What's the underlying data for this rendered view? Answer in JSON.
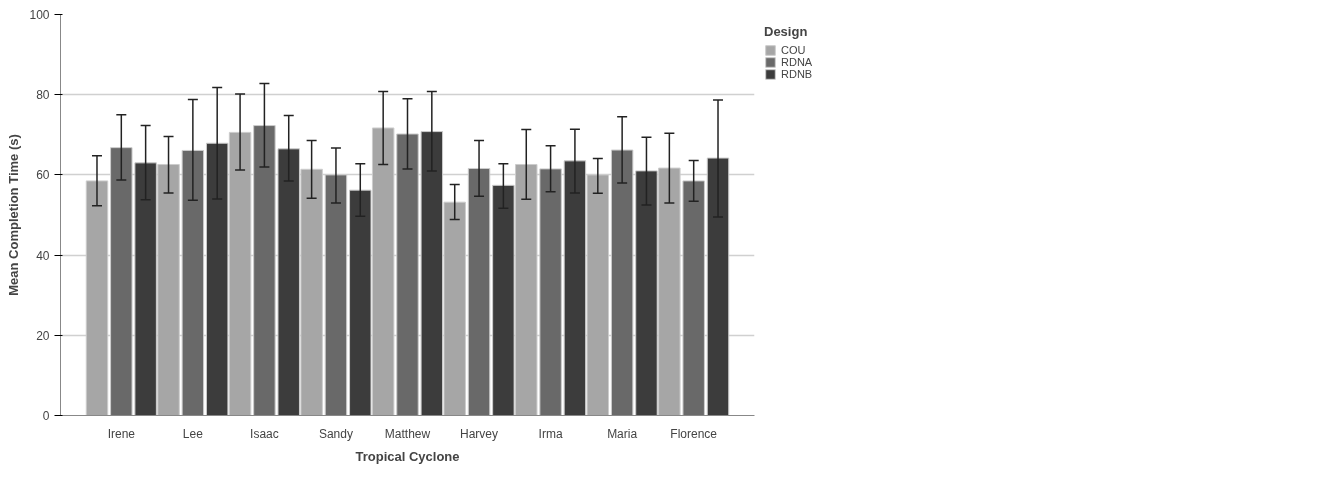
{
  "chart_data": {
    "type": "bar",
    "xlabel": "Tropical Cyclone",
    "ylabel": "Mean Completion Time (s)",
    "legend_title": "Design",
    "categories": [
      "Irene",
      "Lee",
      "Isaac",
      "Sandy",
      "Matthew",
      "Harvey",
      "Irma",
      "Maria",
      "Florence"
    ],
    "series": [
      {
        "name": "COU",
        "color": "#a6a6a6",
        "values": [
          58.5,
          62.6,
          70.6,
          61.4,
          71.7,
          53.2,
          62.6,
          60.0,
          61.7
        ],
        "errors": [
          [
            52.3,
            64.8
          ],
          [
            55.5,
            69.6
          ],
          [
            61.2,
            80.2
          ],
          [
            54.2,
            68.6
          ],
          [
            62.6,
            80.8
          ],
          [
            48.9,
            57.6
          ],
          [
            53.9,
            71.3
          ],
          [
            55.4,
            64.1
          ],
          [
            53.0,
            70.4
          ]
        ]
      },
      {
        "name": "RDNA",
        "color": "#696969",
        "values": [
          66.8,
          66.1,
          72.3,
          60.0,
          70.2,
          61.6,
          61.5,
          66.2,
          58.5
        ],
        "errors": [
          [
            58.7,
            75.0
          ],
          [
            53.7,
            78.8
          ],
          [
            62.0,
            82.8
          ],
          [
            53.0,
            66.7
          ],
          [
            61.5,
            79.0
          ],
          [
            54.7,
            68.6
          ],
          [
            55.8,
            67.3
          ],
          [
            58.0,
            74.5
          ],
          [
            53.4,
            63.6
          ]
        ]
      },
      {
        "name": "RDNB",
        "color": "#3c3c3c",
        "values": [
          63.0,
          67.9,
          66.5,
          56.2,
          70.8,
          57.4,
          63.5,
          61.0,
          64.2
        ],
        "errors": [
          [
            53.8,
            72.3
          ],
          [
            54.0,
            81.8
          ],
          [
            58.5,
            74.8
          ],
          [
            49.7,
            62.8
          ],
          [
            61.0,
            80.8
          ],
          [
            51.7,
            62.8
          ],
          [
            55.5,
            71.4
          ],
          [
            52.5,
            69.4
          ],
          [
            49.5,
            78.7
          ]
        ]
      }
    ],
    "ylim": [
      0,
      100
    ],
    "yticks": [
      0,
      20,
      40,
      60,
      80,
      100
    ],
    "grid": "y",
    "legend": "top right"
  }
}
